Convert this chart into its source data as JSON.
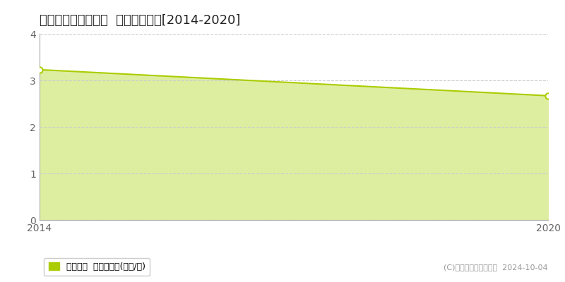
{
  "title": "長岡郡大豊町東土居  土地価格推移[2014-2020]",
  "years": [
    2014,
    2020
  ],
  "values": [
    3.23,
    2.67
  ],
  "ylim": [
    0,
    4
  ],
  "yticks": [
    0,
    1,
    2,
    3,
    4
  ],
  "xlim": [
    2014,
    2020
  ],
  "line_color": "#aacc00",
  "fill_color": "#ddeea0",
  "marker_color": "#ffffff",
  "marker_edge_color": "#aacc00",
  "grid_color": "#cccccc",
  "bg_color": "#ffffff",
  "plot_bg_color": "#ffffff",
  "legend_label": "土地価格  平均坪単価(万円/坪)",
  "copyright_text": "(C)土地価格ドットコム  2024-10-04",
  "title_fontsize": 13,
  "tick_fontsize": 10,
  "legend_fontsize": 9,
  "copyright_fontsize": 8
}
